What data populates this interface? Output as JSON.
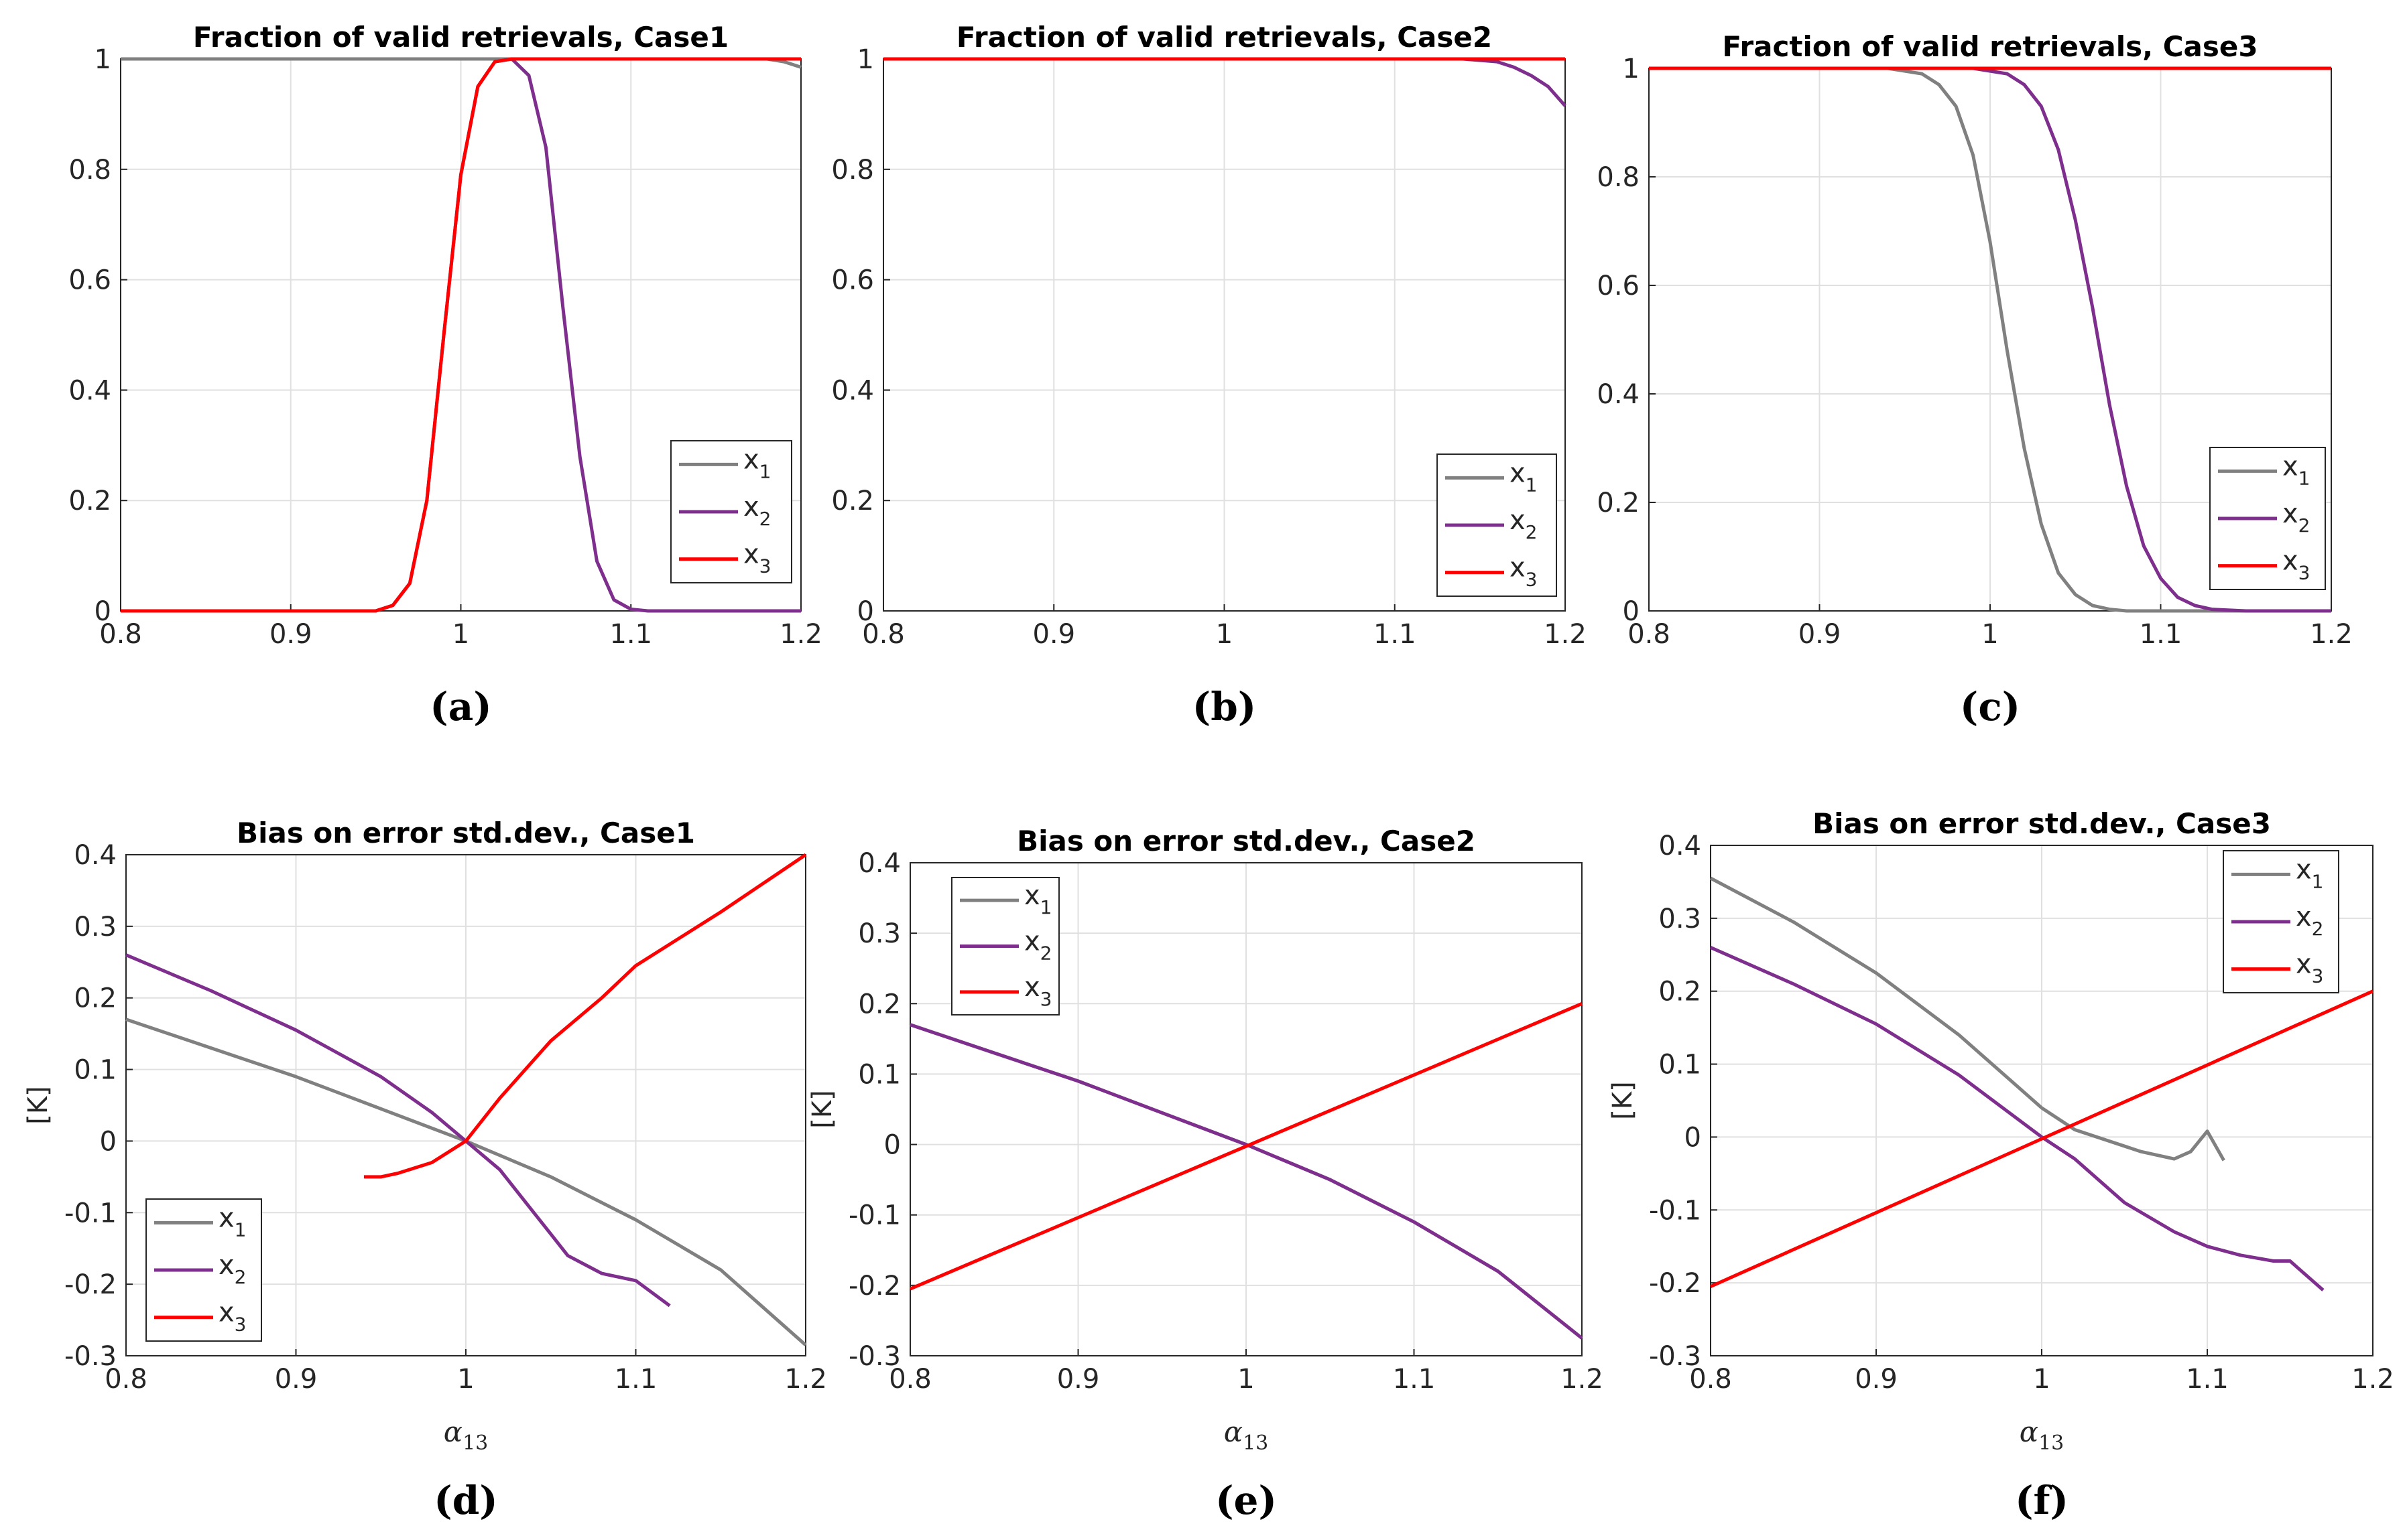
{
  "chart_data": [
    {
      "type": "line",
      "panel_label": "(a)",
      "title": "Fraction of valid retrievals, Case1",
      "xlabel": "",
      "ylabel": "",
      "xlim": [
        0.8,
        1.2
      ],
      "ylim": [
        0,
        1
      ],
      "xticks": [
        "0.8",
        "0.9",
        "1",
        "1.1",
        "1.2"
      ],
      "yticks": [
        "0",
        "0.2",
        "0.4",
        "0.6",
        "0.8",
        "1"
      ],
      "grid": true,
      "legend_position": "bottom-right",
      "series": [
        {
          "name": "x",
          "sub": "1",
          "color": "#808080",
          "x": [
            0.8,
            1.18,
            1.19,
            1.2
          ],
          "y": [
            1,
            1,
            0.995,
            0.985
          ]
        },
        {
          "name": "x",
          "sub": "2",
          "color": "#7e2f8e",
          "x": [
            0.8,
            0.95,
            0.96,
            0.97,
            0.98,
            0.99,
            1.0,
            1.01,
            1.02,
            1.03,
            1.04,
            1.05,
            1.06,
            1.07,
            1.08,
            1.09,
            1.1,
            1.11,
            1.2
          ],
          "y": [
            0,
            0,
            0.01,
            0.05,
            0.2,
            0.5,
            0.79,
            0.95,
            0.995,
            1.0,
            0.97,
            0.84,
            0.55,
            0.28,
            0.09,
            0.02,
            0.003,
            0,
            0
          ]
        },
        {
          "name": "x",
          "sub": "3",
          "color": "#ff0000",
          "x": [
            0.8,
            0.95,
            0.96,
            0.97,
            0.98,
            0.99,
            1.0,
            1.01,
            1.02,
            1.03,
            1.2
          ],
          "y": [
            0,
            0,
            0.01,
            0.05,
            0.2,
            0.5,
            0.79,
            0.95,
            0.995,
            1.0,
            1.0
          ]
        }
      ]
    },
    {
      "type": "line",
      "panel_label": "(b)",
      "title": "Fraction of valid retrievals, Case2",
      "xlabel": "",
      "ylabel": "",
      "xlim": [
        0.8,
        1.2
      ],
      "ylim": [
        0,
        1
      ],
      "xticks": [
        "0.8",
        "0.9",
        "1",
        "1.1",
        "1.2"
      ],
      "yticks": [
        "0",
        "0.2",
        "0.4",
        "0.6",
        "0.8",
        "1"
      ],
      "grid": true,
      "legend_position": "bottom-right",
      "series": [
        {
          "name": "x",
          "sub": "1",
          "color": "#808080",
          "x": [
            0.8,
            1.2
          ],
          "y": [
            1,
            1
          ]
        },
        {
          "name": "x",
          "sub": "2",
          "color": "#7e2f8e",
          "x": [
            0.8,
            1.14,
            1.16,
            1.17,
            1.18,
            1.19,
            1.2
          ],
          "y": [
            1,
            1,
            0.995,
            0.985,
            0.97,
            0.95,
            0.915
          ]
        },
        {
          "name": "x",
          "sub": "3",
          "color": "#ff0000",
          "x": [
            0.8,
            1.2
          ],
          "y": [
            1,
            1
          ]
        }
      ]
    },
    {
      "type": "line",
      "panel_label": "(c)",
      "title": "Fraction of valid retrievals, Case3",
      "xlabel": "",
      "ylabel": "",
      "xlim": [
        0.8,
        1.2
      ],
      "ylim": [
        0,
        1
      ],
      "xticks": [
        "0.8",
        "0.9",
        "1",
        "1.1",
        "1.2"
      ],
      "yticks": [
        "0",
        "0.2",
        "0.4",
        "0.6",
        "0.8",
        "1"
      ],
      "grid": true,
      "legend_position": "bottom-right",
      "series": [
        {
          "name": "x",
          "sub": "1",
          "color": "#808080",
          "x": [
            0.8,
            0.94,
            0.96,
            0.97,
            0.98,
            0.99,
            1.0,
            1.01,
            1.02,
            1.03,
            1.04,
            1.05,
            1.06,
            1.07,
            1.08,
            1.2
          ],
          "y": [
            1,
            1,
            0.99,
            0.97,
            0.93,
            0.84,
            0.68,
            0.48,
            0.3,
            0.16,
            0.07,
            0.03,
            0.01,
            0.003,
            0,
            0
          ]
        },
        {
          "name": "x",
          "sub": "2",
          "color": "#7e2f8e",
          "x": [
            0.8,
            0.99,
            1.01,
            1.02,
            1.03,
            1.04,
            1.05,
            1.06,
            1.07,
            1.08,
            1.09,
            1.1,
            1.11,
            1.12,
            1.13,
            1.15,
            1.2
          ],
          "y": [
            1,
            1,
            0.99,
            0.97,
            0.93,
            0.85,
            0.72,
            0.56,
            0.38,
            0.23,
            0.12,
            0.06,
            0.025,
            0.01,
            0.003,
            0,
            0
          ]
        },
        {
          "name": "x",
          "sub": "3",
          "color": "#ff0000",
          "x": [
            0.8,
            1.2
          ],
          "y": [
            1,
            1
          ]
        }
      ]
    },
    {
      "type": "line",
      "panel_label": "(d)",
      "title": "Bias on error std.dev., Case1",
      "xlabel": "α",
      "xlabel_sub": "13",
      "ylabel": "[K]",
      "xlim": [
        0.8,
        1.2
      ],
      "ylim": [
        -0.3,
        0.4
      ],
      "xticks": [
        "0.8",
        "0.9",
        "1",
        "1.1",
        "1.2"
      ],
      "yticks": [
        "-0.3",
        "-0.2",
        "-0.1",
        "0",
        "0.1",
        "0.2",
        "0.3",
        "0.4"
      ],
      "grid": true,
      "legend_position": "bottom-left",
      "series": [
        {
          "name": "x",
          "sub": "1",
          "color": "#808080",
          "x": [
            0.8,
            0.85,
            0.9,
            0.95,
            1.0,
            1.05,
            1.1,
            1.15,
            1.2
          ],
          "y": [
            0.17,
            0.13,
            0.09,
            0.045,
            0.0,
            -0.05,
            -0.11,
            -0.18,
            -0.285
          ]
        },
        {
          "name": "x",
          "sub": "2",
          "color": "#7e2f8e",
          "x": [
            0.8,
            0.85,
            0.9,
            0.95,
            0.98,
            1.0,
            1.02,
            1.04,
            1.05,
            1.06,
            1.08,
            1.1,
            1.12
          ],
          "y": [
            0.26,
            0.21,
            0.155,
            0.09,
            0.04,
            0.0,
            -0.04,
            -0.1,
            -0.13,
            -0.16,
            -0.185,
            -0.195,
            -0.23
          ]
        },
        {
          "name": "x",
          "sub": "3",
          "color": "#ff0000",
          "x": [
            0.94,
            0.95,
            0.96,
            0.98,
            0.99,
            1.0,
            1.02,
            1.05,
            1.08,
            1.1,
            1.15,
            1.2
          ],
          "y": [
            -0.05,
            -0.05,
            -0.045,
            -0.03,
            -0.015,
            0.0,
            0.06,
            0.14,
            0.2,
            0.245,
            0.32,
            0.4
          ]
        }
      ]
    },
    {
      "type": "line",
      "panel_label": "(e)",
      "title": "Bias on error std.dev., Case2",
      "xlabel": "α",
      "xlabel_sub": "13",
      "ylabel": "[K]",
      "xlim": [
        0.8,
        1.2
      ],
      "ylim": [
        -0.3,
        0.4
      ],
      "xticks": [
        "0.8",
        "0.9",
        "1",
        "1.1",
        "1.2"
      ],
      "yticks": [
        "-0.3",
        "-0.2",
        "-0.1",
        "0",
        "0.1",
        "0.2",
        "0.3",
        "0.4"
      ],
      "grid": true,
      "legend_position": "top-left",
      "series": [
        {
          "name": "x",
          "sub": "1",
          "color": "#808080",
          "x": [
            0.8,
            0.85,
            0.9,
            0.95,
            1.0,
            1.05,
            1.1,
            1.15,
            1.2
          ],
          "y": [
            0.17,
            0.13,
            0.09,
            0.045,
            0.0,
            -0.05,
            -0.11,
            -0.18,
            -0.275
          ]
        },
        {
          "name": "x",
          "sub": "2",
          "color": "#7e2f8e",
          "x": [
            0.8,
            0.85,
            0.9,
            0.95,
            1.0,
            1.05,
            1.1,
            1.15,
            1.2
          ],
          "y": [
            0.17,
            0.13,
            0.09,
            0.045,
            0.0,
            -0.05,
            -0.11,
            -0.18,
            -0.275
          ]
        },
        {
          "name": "x",
          "sub": "3",
          "color": "#ff0000",
          "x": [
            0.8,
            1.2
          ],
          "y": [
            -0.205,
            0.2
          ]
        }
      ]
    },
    {
      "type": "line",
      "panel_label": "(f)",
      "title": "Bias on error std.dev., Case3",
      "xlabel": "α",
      "xlabel_sub": "13",
      "ylabel": "[K]",
      "xlim": [
        0.8,
        1.2
      ],
      "ylim": [
        -0.3,
        0.4
      ],
      "xticks": [
        "0.8",
        "0.9",
        "1",
        "1.1",
        "1.2"
      ],
      "yticks": [
        "-0.3",
        "-0.2",
        "-0.1",
        "0",
        "0.1",
        "0.2",
        "0.3",
        "0.4"
      ],
      "grid": true,
      "legend_position": "top-right",
      "series": [
        {
          "name": "x",
          "sub": "1",
          "color": "#808080",
          "x": [
            0.8,
            0.85,
            0.9,
            0.95,
            0.98,
            1.0,
            1.02,
            1.04,
            1.06,
            1.08,
            1.09,
            1.1,
            1.11
          ],
          "y": [
            0.355,
            0.295,
            0.225,
            0.14,
            0.08,
            0.04,
            0.01,
            -0.005,
            -0.02,
            -0.03,
            -0.02,
            0.008,
            -0.032
          ]
        },
        {
          "name": "x",
          "sub": "2",
          "color": "#7e2f8e",
          "x": [
            0.8,
            0.85,
            0.9,
            0.95,
            1.0,
            1.02,
            1.05,
            1.08,
            1.1,
            1.12,
            1.14,
            1.15,
            1.16,
            1.17
          ],
          "y": [
            0.26,
            0.21,
            0.155,
            0.085,
            0.0,
            -0.03,
            -0.09,
            -0.13,
            -0.15,
            -0.162,
            -0.17,
            -0.17,
            -0.19,
            -0.21
          ]
        },
        {
          "name": "x",
          "sub": "3",
          "color": "#ff0000",
          "x": [
            0.8,
            1.2
          ],
          "y": [
            -0.205,
            0.2
          ]
        }
      ]
    }
  ]
}
